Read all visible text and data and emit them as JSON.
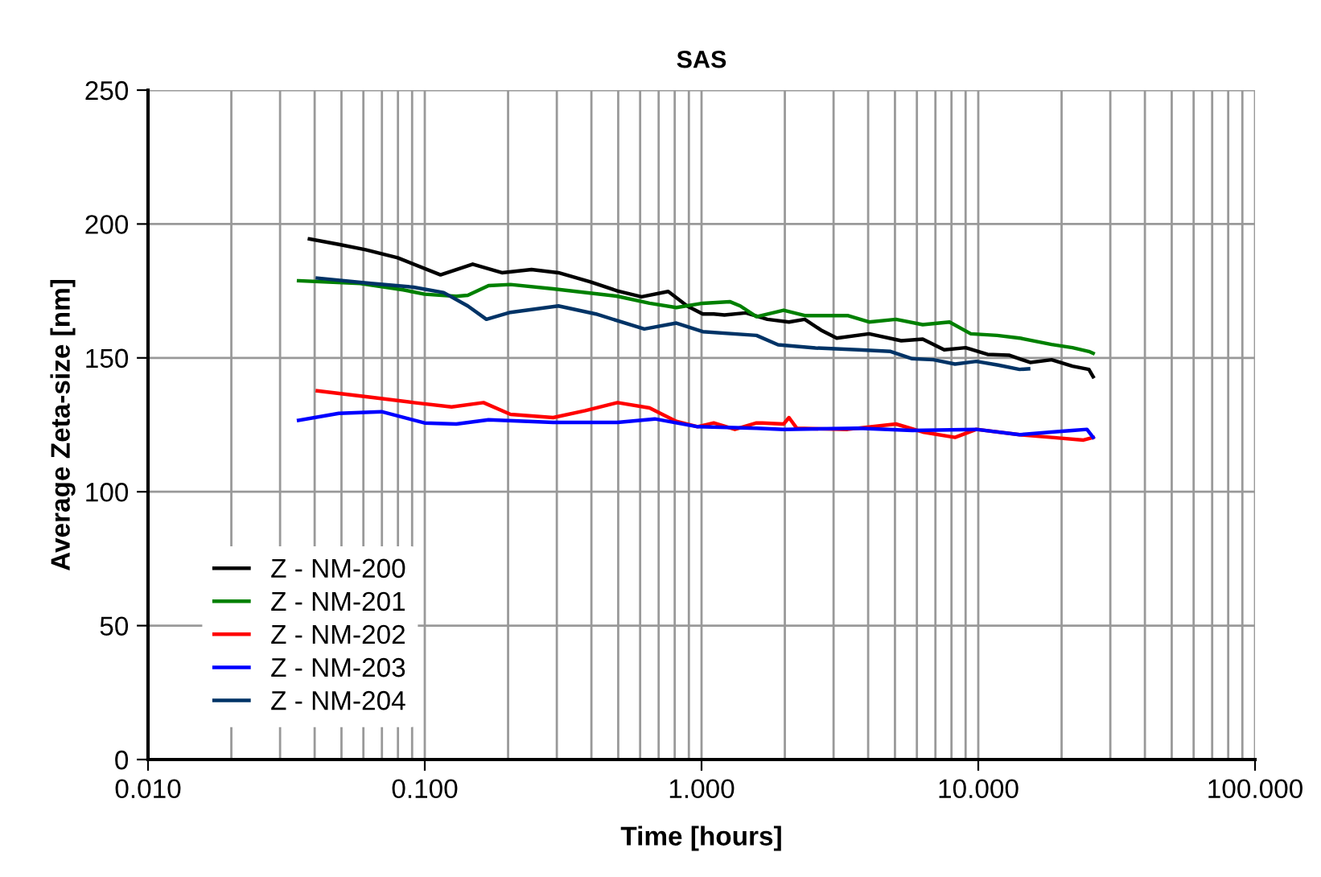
{
  "chart_data": {
    "type": "line",
    "title": "SAS",
    "xlabel": "Time [hours]",
    "ylabel": "Average Zeta-size [nm]",
    "log": "x",
    "grid": true,
    "legend": "bottom left",
    "marker": "none",
    "line_style": "solid",
    "xlim": [
      0.01,
      100
    ],
    "xticks": [
      {
        "value": 0.01,
        "label": "0.010"
      },
      {
        "value": 0.1,
        "label": "0.100"
      },
      {
        "value": 1,
        "label": "1.000"
      },
      {
        "value": 10,
        "label": "10.000"
      },
      {
        "value": 100,
        "label": "100.000"
      }
    ],
    "ylim": [
      0,
      250
    ],
    "yticks": [
      0,
      50,
      100,
      150,
      200,
      250
    ],
    "series": [
      {
        "name": "Z - NM-200",
        "color": "#000000",
        "x": [
          0.0383,
          0.0489,
          0.0611,
          0.0798,
          0.114,
          0.149,
          0.19,
          0.243,
          0.304,
          0.397,
          0.497,
          0.607,
          0.758,
          0.887,
          1.01,
          1.107,
          1.21,
          1.446,
          1.73,
          2.07,
          2.36,
          2.7,
          3.08,
          4.03,
          5.27,
          6.3,
          7.53,
          9.0,
          10.8,
          12.9,
          15.4,
          18.4,
          21.9,
          25.1,
          26.0
        ],
        "values": [
          194.4,
          192.4,
          190.4,
          187.4,
          181.0,
          185.0,
          181.8,
          183.0,
          181.8,
          178.4,
          175.0,
          172.8,
          174.8,
          169.4,
          166.4,
          166.4,
          166.0,
          166.8,
          164.4,
          163.4,
          164.4,
          160.4,
          157.4,
          159.0,
          156.4,
          157.0,
          153.0,
          153.8,
          151.3,
          151.0,
          148.3,
          149.3,
          146.9,
          145.7,
          143.0
        ]
      },
      {
        "name": "Z - NM-201",
        "color": "#008000",
        "x": [
          0.035,
          0.0584,
          0.0836,
          0.0998,
          0.13,
          0.143,
          0.17,
          0.204,
          0.291,
          0.497,
          0.649,
          0.811,
          1.01,
          1.265,
          1.38,
          1.58,
          1.98,
          2.36,
          3.37,
          4.03,
          5.04,
          6.3,
          7.87,
          9.4,
          11.7,
          14.1,
          18.4,
          21.9,
          25.1,
          26.0
        ],
        "values": [
          178.8,
          177.8,
          175.4,
          173.8,
          173.0,
          173.4,
          177.0,
          177.4,
          175.8,
          173.0,
          170.4,
          168.8,
          170.4,
          171.0,
          169.4,
          165.4,
          167.8,
          165.8,
          165.8,
          163.4,
          164.4,
          162.4,
          163.4,
          159.0,
          158.4,
          157.4,
          155.0,
          153.8,
          152.4,
          151.7
        ]
      },
      {
        "name": "Z - NM-202",
        "color": "#ff0000",
        "x": [
          0.0409,
          0.0639,
          0.0912,
          0.125,
          0.163,
          0.204,
          0.291,
          0.38,
          0.497,
          0.649,
          0.811,
          0.968,
          1.107,
          1.32,
          1.58,
          1.66,
          1.98,
          2.07,
          2.21,
          3.37,
          5.04,
          6.3,
          8.24,
          9.84,
          14.1,
          18.4,
          24.0,
          26.0
        ],
        "values": [
          137.7,
          135.3,
          133.3,
          131.7,
          133.3,
          128.9,
          127.7,
          130.3,
          133.3,
          131.3,
          126.3,
          124.3,
          125.7,
          123.3,
          125.7,
          125.7,
          125.3,
          127.7,
          123.7,
          123.3,
          125.3,
          122.3,
          120.3,
          123.3,
          121.3,
          120.3,
          119.3,
          120.3
        ]
      },
      {
        "name": "Z - NM-203",
        "color": "#0000ff",
        "x": [
          0.035,
          0.0489,
          0.0698,
          0.0998,
          0.13,
          0.17,
          0.291,
          0.497,
          0.678,
          0.968,
          1.58,
          1.98,
          3.69,
          5.77,
          9.84,
          14.1,
          18.4,
          21.9,
          24.7,
          26.0
        ],
        "values": [
          126.7,
          129.3,
          129.9,
          125.7,
          125.3,
          126.9,
          125.9,
          125.9,
          127.2,
          124.3,
          123.7,
          123.3,
          123.7,
          122.9,
          123.3,
          121.3,
          122.3,
          122.9,
          123.3,
          120.3
        ]
      },
      {
        "name": "Z - NM-204",
        "color": "#003366",
        "x": [
          0.0409,
          0.0639,
          0.0912,
          0.117,
          0.143,
          0.167,
          0.204,
          0.304,
          0.415,
          0.621,
          0.811,
          1.01,
          1.58,
          1.89,
          2.58,
          3.69,
          4.82,
          5.77,
          6.89,
          8.24,
          9.84,
          11.8,
          14.1,
          15.2
        ],
        "values": [
          179.8,
          177.8,
          176.4,
          174.4,
          169.4,
          164.4,
          167.0,
          169.4,
          166.4,
          160.8,
          163.0,
          159.8,
          158.4,
          154.9,
          153.7,
          153.0,
          152.4,
          149.7,
          149.3,
          147.7,
          148.7,
          147.3,
          145.7,
          145.9
        ]
      }
    ]
  }
}
